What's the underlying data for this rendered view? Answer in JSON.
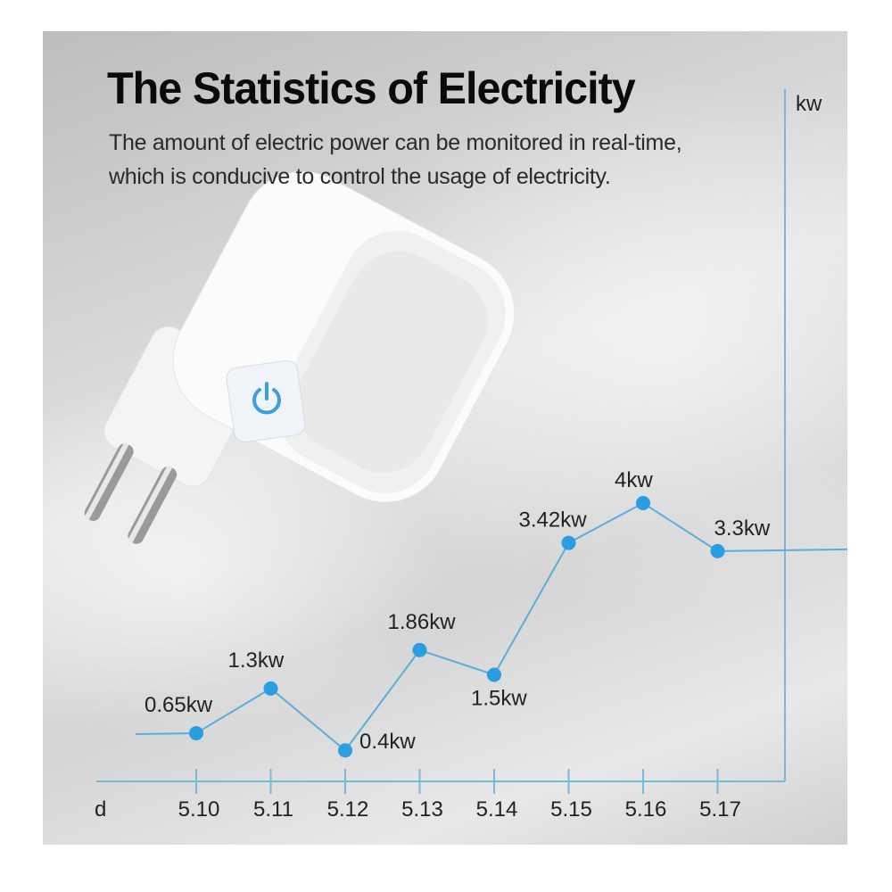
{
  "header": {
    "title": "The Statistics of Electricity",
    "subtitle_line1": "The amount of electric power can be monitored in real-time,",
    "subtitle_line2": "which is conducive to control the usage of electricity."
  },
  "colors": {
    "line": "#5aaedb",
    "point": "#2a9ee0",
    "axis": "#7ab8da"
  },
  "chart_data": {
    "type": "line",
    "title": "",
    "xlabel": "d",
    "ylabel": "kw",
    "categories": [
      "5.10",
      "5.11",
      "5.12",
      "5.13",
      "5.14",
      "5.15",
      "5.16",
      "5.17"
    ],
    "values": [
      0.65,
      1.3,
      0.4,
      1.86,
      1.5,
      3.42,
      4,
      3.3
    ],
    "data_labels": [
      "0.65kw",
      "1.3kw",
      "0.4kw",
      "1.86kw",
      "1.5kw",
      "3.42kw",
      "4kw",
      "3.3kw"
    ],
    "grid": false
  },
  "product": {
    "icon": "power-button-icon"
  }
}
